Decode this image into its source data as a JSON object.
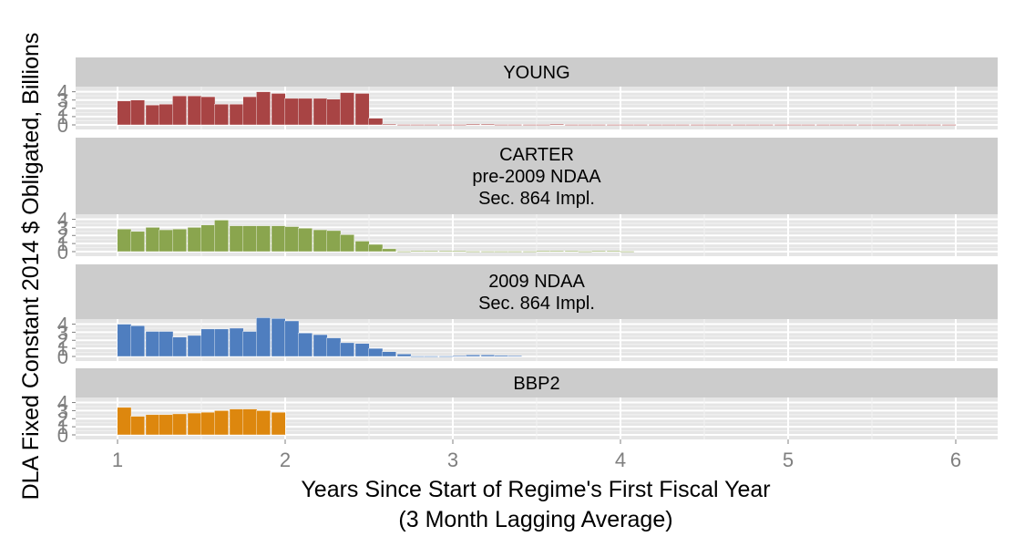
{
  "chart_data": {
    "type": "bar",
    "xlabel_lines": [
      "Years Since Start of Regime's First Fiscal Year",
      "(3 Month Lagging Average)"
    ],
    "ylabel": "DLA Fixed Constant 2014 $ Obligated, Billions",
    "xlim": [
      0.75,
      6.25
    ],
    "ylim": [
      0,
      4.4
    ],
    "x_ticks": [
      1,
      2,
      3,
      4,
      5,
      6
    ],
    "y_ticks": [
      0,
      1,
      2,
      3,
      4
    ],
    "bar_width": 0.0833,
    "panels": [
      {
        "label_lines": [
          "YOUNG"
        ],
        "color": "#a84444",
        "x": [
          1.04,
          1.12,
          1.21,
          1.29,
          1.37,
          1.46,
          1.54,
          1.62,
          1.71,
          1.79,
          1.87,
          1.96,
          2.04,
          2.12,
          2.21,
          2.29,
          2.37,
          2.46,
          2.54,
          2.62,
          2.71,
          2.79,
          2.87,
          2.96,
          3.04,
          3.12,
          3.21,
          3.29,
          3.37,
          3.46,
          3.54,
          3.62,
          3.71,
          3.79,
          3.87,
          3.96,
          4.04,
          4.12,
          4.21,
          4.29,
          4.37,
          4.46,
          4.54,
          4.62,
          4.71,
          4.79,
          4.87,
          4.96,
          5.04,
          5.12,
          5.21,
          5.29,
          5.37,
          5.46,
          5.54,
          5.62,
          5.71,
          5.79,
          5.87,
          5.96
        ],
        "values": [
          2.9,
          3.0,
          2.4,
          2.5,
          3.5,
          3.5,
          3.4,
          2.5,
          2.5,
          3.4,
          4.0,
          3.8,
          3.2,
          3.2,
          3.2,
          3.1,
          3.9,
          3.8,
          0.8,
          0.1,
          0.05,
          0.05,
          0.05,
          0.05,
          0.05,
          0.1,
          0.1,
          0.05,
          0.05,
          0.05,
          0.05,
          0.1,
          0.05,
          0.05,
          0.05,
          0.05,
          0.05,
          0.05,
          0.05,
          0.05,
          0.05,
          0.05,
          0.05,
          0.05,
          0.05,
          0.05,
          0.05,
          0.05,
          0.05,
          0.05,
          0.05,
          0.05,
          0.05,
          0.05,
          0.05,
          0.05,
          0.05,
          0.05,
          0.05,
          0.05
        ]
      },
      {
        "label_lines": [
          "CARTER",
          "pre-2009 NDAA",
          "Sec. 864 Impl."
        ],
        "color": "#8aa54e",
        "x": [
          1.04,
          1.12,
          1.21,
          1.29,
          1.37,
          1.46,
          1.54,
          1.62,
          1.71,
          1.79,
          1.87,
          1.96,
          2.04,
          2.12,
          2.21,
          2.29,
          2.37,
          2.46,
          2.54,
          2.62,
          2.71,
          2.79,
          2.87,
          2.96,
          3.04,
          3.12,
          3.21,
          3.29,
          3.37,
          3.46,
          3.54,
          3.62,
          3.71,
          3.79,
          3.87,
          3.96,
          4.04
        ],
        "values": [
          2.8,
          2.5,
          3.0,
          2.7,
          2.8,
          3.0,
          3.3,
          3.9,
          3.2,
          3.2,
          3.2,
          3.2,
          3.1,
          2.9,
          2.7,
          2.6,
          2.1,
          1.3,
          0.9,
          0.35,
          0.05,
          0.1,
          0.1,
          0.1,
          0.1,
          0.05,
          0.05,
          0.05,
          0.05,
          0.05,
          0.1,
          0.1,
          0.1,
          0.05,
          0.1,
          0.1,
          0.05
        ]
      },
      {
        "label_lines": [
          "2009 NDAA",
          "Sec. 864 Impl."
        ],
        "color": "#4f7ebf",
        "x": [
          1.04,
          1.12,
          1.21,
          1.29,
          1.37,
          1.46,
          1.54,
          1.62,
          1.71,
          1.79,
          1.87,
          1.96,
          2.04,
          2.12,
          2.21,
          2.29,
          2.37,
          2.46,
          2.54,
          2.62,
          2.71,
          2.79,
          2.87,
          2.96,
          3.04,
          3.12,
          3.21,
          3.29,
          3.37
        ],
        "values": [
          4.0,
          3.8,
          3.1,
          3.1,
          2.4,
          2.6,
          3.4,
          3.4,
          3.5,
          3.1,
          4.8,
          4.7,
          4.4,
          2.9,
          2.7,
          2.3,
          1.7,
          1.6,
          1.0,
          0.6,
          0.3,
          0.05,
          0.05,
          0.05,
          0.1,
          0.2,
          0.2,
          0.15,
          0.1
        ]
      },
      {
        "label_lines": [
          "BBP2"
        ],
        "color": "#dd870e",
        "x": [
          1.04,
          1.12,
          1.21,
          1.29,
          1.37,
          1.46,
          1.54,
          1.62,
          1.71,
          1.79,
          1.87,
          1.96
        ],
        "values": [
          3.4,
          2.3,
          2.5,
          2.5,
          2.6,
          2.7,
          2.8,
          3.0,
          3.2,
          3.2,
          3.0,
          2.8
        ]
      }
    ]
  }
}
